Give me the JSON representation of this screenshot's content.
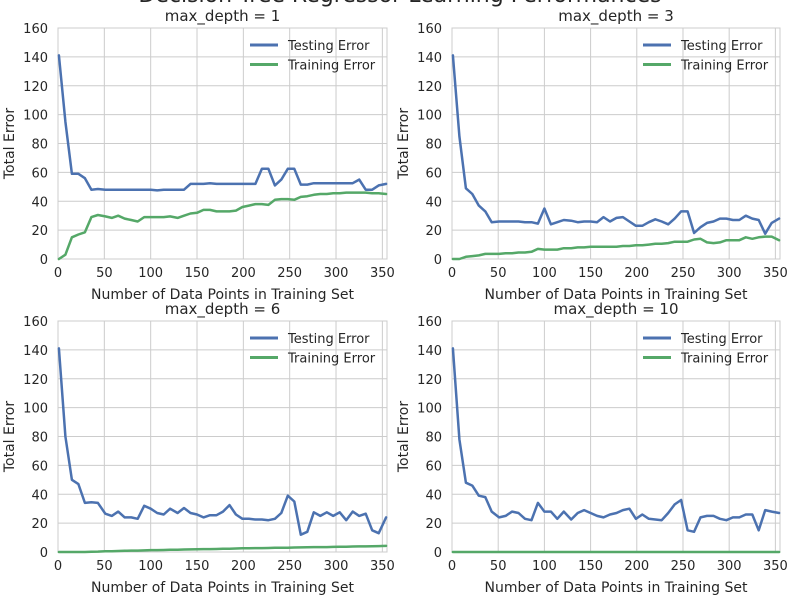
{
  "figure": {
    "suptitle": "Decision Tree Regressor Learning Performances"
  },
  "colors": {
    "testing": "#4C72B0",
    "training": "#55A868",
    "grid": "#cccccc",
    "text": "#262626"
  },
  "chart_data": [
    {
      "type": "line",
      "title": "max_depth = 1",
      "xlabel": "Number of Data Points in Training Set",
      "ylabel": "Total Error",
      "xlim": [
        0,
        355
      ],
      "ylim": [
        0,
        160
      ],
      "xticks": [
        0,
        50,
        100,
        150,
        200,
        250,
        300,
        350
      ],
      "yticks": [
        0,
        20,
        40,
        60,
        80,
        100,
        120,
        140,
        160
      ],
      "grid": true,
      "legend": "top-right",
      "series": [
        {
          "name": "Testing Error",
          "color": "#4C72B0",
          "x": [
            1,
            8,
            15,
            22,
            29,
            36,
            43,
            51,
            58,
            65,
            72,
            79,
            86,
            93,
            100,
            107,
            114,
            121,
            129,
            136,
            143,
            150,
            157,
            164,
            171,
            178,
            185,
            192,
            199,
            206,
            213,
            220,
            227,
            234,
            241,
            248,
            255,
            262,
            269,
            276,
            283,
            290,
            297,
            304,
            311,
            318,
            325,
            332,
            339,
            346,
            354
          ],
          "y": [
            141,
            95,
            59,
            59,
            56,
            48,
            48.5,
            48,
            48,
            48,
            48,
            48,
            48,
            48,
            48,
            47.5,
            48,
            48,
            48,
            48,
            52,
            52,
            52,
            52.5,
            52,
            52,
            52,
            52,
            52,
            52,
            52,
            62.5,
            62.5,
            51,
            55,
            62.5,
            62.5,
            51.5,
            51.5,
            52.5,
            52.5,
            52.5,
            52.5,
            52.5,
            52.5,
            52.5,
            55,
            48,
            48,
            51,
            52
          ]
        },
        {
          "name": "Training Error",
          "color": "#55A868",
          "x": [
            1,
            8,
            15,
            22,
            29,
            36,
            43,
            51,
            58,
            65,
            72,
            79,
            86,
            93,
            100,
            107,
            114,
            121,
            129,
            136,
            143,
            150,
            157,
            164,
            171,
            178,
            185,
            192,
            199,
            206,
            213,
            220,
            227,
            234,
            241,
            248,
            255,
            262,
            269,
            276,
            283,
            290,
            297,
            304,
            311,
            318,
            325,
            332,
            339,
            346,
            354
          ],
          "y": [
            0,
            3,
            15,
            17,
            18.5,
            29,
            30.5,
            29.5,
            28.5,
            30,
            28,
            27,
            26,
            29,
            29,
            29,
            29,
            29.5,
            28.5,
            30,
            31.5,
            32,
            34,
            34,
            33,
            33,
            33,
            33.5,
            36,
            37,
            38,
            38,
            37.5,
            41,
            41.5,
            41.5,
            41,
            43,
            43.5,
            44.5,
            45,
            45,
            45.5,
            45.5,
            46,
            46,
            46,
            46,
            45.5,
            45.5,
            45
          ]
        }
      ]
    },
    {
      "type": "line",
      "title": "max_depth = 3",
      "xlabel": "Number of Data Points in Training Set",
      "ylabel": "Total Error",
      "xlim": [
        0,
        355
      ],
      "ylim": [
        0,
        160
      ],
      "xticks": [
        0,
        50,
        100,
        150,
        200,
        250,
        300,
        350
      ],
      "yticks": [
        0,
        20,
        40,
        60,
        80,
        100,
        120,
        140,
        160
      ],
      "grid": true,
      "legend": "top-right",
      "series": [
        {
          "name": "Testing Error",
          "color": "#4C72B0",
          "x": [
            1,
            8,
            15,
            22,
            29,
            36,
            43,
            51,
            58,
            65,
            72,
            79,
            86,
            93,
            100,
            107,
            114,
            121,
            129,
            136,
            143,
            150,
            157,
            164,
            171,
            178,
            185,
            192,
            199,
            206,
            213,
            220,
            227,
            234,
            241,
            248,
            255,
            262,
            269,
            276,
            283,
            290,
            297,
            304,
            311,
            318,
            325,
            332,
            339,
            346,
            354
          ],
          "y": [
            141,
            85,
            49,
            45,
            37,
            33,
            25.5,
            26,
            26,
            26,
            26,
            25.5,
            25.5,
            24.5,
            35,
            24,
            25.5,
            27,
            26.5,
            25.5,
            26,
            26,
            25.5,
            29,
            26,
            28.5,
            29,
            26,
            23,
            23,
            25.5,
            27.5,
            26,
            24,
            28,
            33,
            33,
            18,
            22,
            25,
            26,
            28,
            28,
            27,
            27,
            30,
            28,
            27,
            17.5,
            25,
            28
          ]
        },
        {
          "name": "Training Error",
          "color": "#55A868",
          "x": [
            1,
            8,
            15,
            22,
            29,
            36,
            43,
            51,
            58,
            65,
            72,
            79,
            86,
            93,
            100,
            107,
            114,
            121,
            129,
            136,
            143,
            150,
            157,
            164,
            171,
            178,
            185,
            192,
            199,
            206,
            213,
            220,
            227,
            234,
            241,
            248,
            255,
            262,
            269,
            276,
            283,
            290,
            297,
            304,
            311,
            318,
            325,
            332,
            339,
            346,
            354
          ],
          "y": [
            0,
            0,
            1.5,
            2,
            2.5,
            3.5,
            3.5,
            3.5,
            4,
            4,
            4.5,
            4.5,
            5,
            7,
            6.5,
            6.5,
            6.5,
            7.5,
            7.5,
            8,
            8,
            8.5,
            8.5,
            8.5,
            8.5,
            8.5,
            9,
            9,
            9.5,
            9.5,
            10,
            10.5,
            10.5,
            11,
            12,
            12,
            12,
            13.5,
            14,
            11.5,
            11,
            11.5,
            13,
            13,
            13,
            15,
            14,
            15,
            15.5,
            15.5,
            13
          ]
        }
      ]
    },
    {
      "type": "line",
      "title": "max_depth = 6",
      "xlabel": "Number of Data Points in Training Set",
      "ylabel": "Total Error",
      "xlim": [
        0,
        355
      ],
      "ylim": [
        0,
        160
      ],
      "xticks": [
        0,
        50,
        100,
        150,
        200,
        250,
        300,
        350
      ],
      "yticks": [
        0,
        20,
        40,
        60,
        80,
        100,
        120,
        140,
        160
      ],
      "grid": true,
      "legend": "top-right",
      "series": [
        {
          "name": "Testing Error",
          "color": "#4C72B0",
          "x": [
            1,
            8,
            15,
            22,
            29,
            36,
            43,
            51,
            58,
            65,
            72,
            79,
            86,
            93,
            100,
            107,
            114,
            121,
            129,
            136,
            143,
            150,
            157,
            164,
            171,
            178,
            185,
            192,
            199,
            206,
            213,
            220,
            227,
            234,
            241,
            248,
            255,
            262,
            269,
            276,
            283,
            290,
            297,
            304,
            311,
            318,
            325,
            332,
            339,
            346,
            354
          ],
          "y": [
            141,
            80,
            50,
            47,
            34,
            34.5,
            34,
            26.5,
            25,
            28,
            24,
            24,
            23,
            32,
            30,
            27,
            26,
            30,
            27,
            30.5,
            27,
            26,
            24,
            25.5,
            25.5,
            28,
            32.5,
            26,
            23,
            23,
            22.5,
            22.5,
            22,
            23,
            27,
            39,
            35,
            12,
            14,
            27.5,
            25,
            27.5,
            25,
            27.5,
            22,
            28,
            25,
            26.5,
            15,
            13,
            24
          ]
        },
        {
          "name": "Training Error",
          "color": "#55A868",
          "x": [
            1,
            8,
            15,
            22,
            29,
            36,
            43,
            51,
            58,
            65,
            72,
            79,
            86,
            93,
            100,
            107,
            114,
            121,
            129,
            136,
            143,
            150,
            157,
            164,
            171,
            178,
            185,
            192,
            199,
            206,
            213,
            220,
            227,
            234,
            241,
            248,
            255,
            262,
            269,
            276,
            283,
            290,
            297,
            304,
            311,
            318,
            325,
            332,
            339,
            346,
            354
          ],
          "y": [
            0,
            0,
            0,
            0,
            0,
            0.2,
            0.3,
            0.5,
            0.5,
            0.7,
            0.8,
            1,
            1,
            1.1,
            1.3,
            1.3,
            1.4,
            1.5,
            1.6,
            1.7,
            1.8,
            1.9,
            2,
            2,
            2.1,
            2.2,
            2.3,
            2.4,
            2.6,
            2.6,
            2.7,
            2.7,
            2.8,
            2.9,
            3,
            3,
            3.1,
            3.2,
            3.3,
            3.4,
            3.4,
            3.4,
            3.5,
            3.6,
            3.7,
            3.8,
            3.9,
            3.9,
            4,
            4.1,
            4.2
          ]
        }
      ]
    },
    {
      "type": "line",
      "title": "max_depth = 10",
      "xlabel": "Number of Data Points in Training Set",
      "ylabel": "Total Error",
      "xlim": [
        0,
        355
      ],
      "ylim": [
        0,
        160
      ],
      "xticks": [
        0,
        50,
        100,
        150,
        200,
        250,
        300,
        350
      ],
      "yticks": [
        0,
        20,
        40,
        60,
        80,
        100,
        120,
        140,
        160
      ],
      "grid": true,
      "legend": "top-right",
      "series": [
        {
          "name": "Testing Error",
          "color": "#4C72B0",
          "x": [
            1,
            8,
            15,
            22,
            29,
            36,
            43,
            51,
            58,
            65,
            72,
            79,
            86,
            93,
            100,
            107,
            114,
            121,
            129,
            136,
            143,
            150,
            157,
            164,
            171,
            178,
            185,
            192,
            199,
            206,
            213,
            220,
            227,
            234,
            241,
            248,
            255,
            262,
            269,
            276,
            283,
            290,
            297,
            304,
            311,
            318,
            325,
            332,
            339,
            346,
            354
          ],
          "y": [
            141,
            78,
            48,
            46,
            39,
            38,
            28,
            24,
            25,
            28,
            27,
            23,
            22,
            34,
            28,
            28,
            23,
            28,
            22.5,
            27,
            29,
            27,
            25,
            24,
            26,
            27,
            29,
            30,
            23,
            26,
            23,
            22.5,
            22,
            27,
            33,
            36,
            15,
            14,
            24,
            25,
            25,
            23,
            22,
            24,
            24,
            26,
            26,
            15,
            29,
            28,
            27
          ]
        },
        {
          "name": "Training Error",
          "color": "#55A868",
          "x": [
            1,
            8,
            15,
            22,
            29,
            36,
            43,
            51,
            58,
            65,
            72,
            79,
            86,
            93,
            100,
            107,
            114,
            121,
            129,
            136,
            143,
            150,
            157,
            164,
            171,
            178,
            185,
            192,
            199,
            206,
            213,
            220,
            227,
            234,
            241,
            248,
            255,
            262,
            269,
            276,
            283,
            290,
            297,
            304,
            311,
            318,
            325,
            332,
            339,
            346,
            354
          ],
          "y": [
            0,
            0,
            0,
            0,
            0,
            0,
            0,
            0,
            0,
            0,
            0,
            0,
            0,
            0,
            0,
            0,
            0,
            0,
            0,
            0,
            0,
            0,
            0,
            0,
            0,
            0,
            0,
            0,
            0,
            0,
            0,
            0,
            0,
            0,
            0,
            0,
            0,
            0,
            0,
            0,
            0,
            0,
            0,
            0,
            0,
            0,
            0,
            0,
            0,
            0,
            0
          ]
        }
      ]
    }
  ]
}
